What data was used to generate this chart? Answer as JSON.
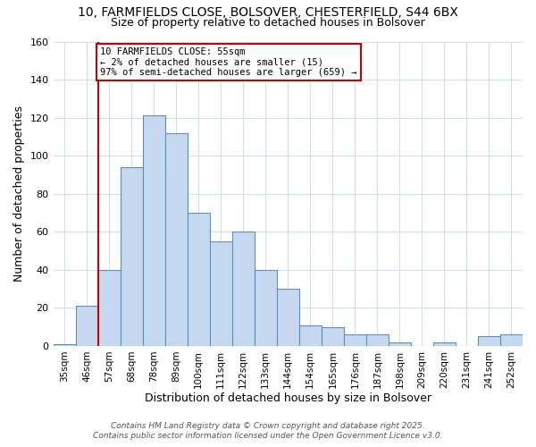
{
  "title_line1": "10, FARMFIELDS CLOSE, BOLSOVER, CHESTERFIELD, S44 6BX",
  "title_line2": "Size of property relative to detached houses in Bolsover",
  "xlabel": "Distribution of detached houses by size in Bolsover",
  "ylabel": "Number of detached properties",
  "categories": [
    "35sqm",
    "46sqm",
    "57sqm",
    "68sqm",
    "78sqm",
    "89sqm",
    "100sqm",
    "111sqm",
    "122sqm",
    "133sqm",
    "144sqm",
    "154sqm",
    "165sqm",
    "176sqm",
    "187sqm",
    "198sqm",
    "209sqm",
    "220sqm",
    "231sqm",
    "241sqm",
    "252sqm"
  ],
  "values": [
    1,
    21,
    40,
    94,
    121,
    112,
    70,
    55,
    60,
    40,
    30,
    11,
    10,
    6,
    6,
    2,
    0,
    2,
    0,
    5,
    6
  ],
  "bar_color": "#c5d8f0",
  "bar_edge_color": "#5a8fc0",
  "annotation_line1": "10 FARMFIELDS CLOSE: 55sqm",
  "annotation_line2": "← 2% of detached houses are smaller (15)",
  "annotation_line3": "97% of semi-detached houses are larger (659) →",
  "annotation_box_edge": "#cc0000",
  "red_line_index": 2,
  "ylim": [
    0,
    160
  ],
  "yticks": [
    0,
    20,
    40,
    60,
    80,
    100,
    120,
    140,
    160
  ],
  "footer_line1": "Contains HM Land Registry data © Crown copyright and database right 2025.",
  "footer_line2": "Contains public sector information licensed under the Open Government Licence v3.0.",
  "background_color": "#ffffff",
  "plot_bg_color": "#ffffff",
  "grid_color": "#d0dff0",
  "title_fontsize": 10,
  "subtitle_fontsize": 9
}
